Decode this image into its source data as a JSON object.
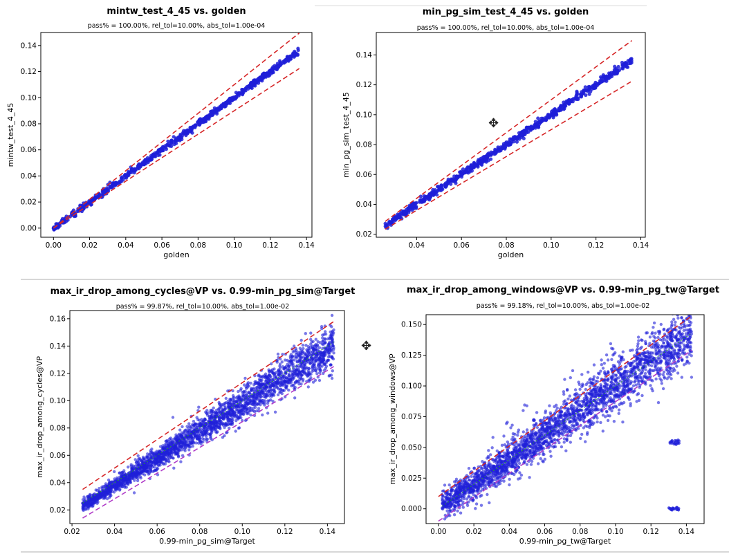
{
  "colors": {
    "points": "#1f1fd8",
    "tolerance": "#d62728",
    "tolerance_lower_alt": "#b03cc8",
    "diagonal": "#2ca02c"
  },
  "cursor_icons": [
    "move-cursor-icon",
    "move-cursor-icon"
  ],
  "chart_data": [
    {
      "type": "scatter",
      "title": "mintw_test_4_45 vs. golden",
      "subtitle": "pass% = 100.00%, rel_tol=10.00%, abs_tol=1.00e-04",
      "xlabel": "golden",
      "ylabel": "mintw_test_4_45",
      "xlim": [
        -0.007,
        0.143
      ],
      "ylim": [
        -0.007,
        0.15
      ],
      "xticks": [
        "0.00",
        "0.02",
        "0.04",
        "0.06",
        "0.08",
        "0.10",
        "0.12",
        "0.14"
      ],
      "yticks": [
        "0.00",
        "0.02",
        "0.04",
        "0.06",
        "0.08",
        "0.10",
        "0.12",
        "0.14"
      ],
      "points_range": [
        0.0,
        0.136
      ],
      "spread": 0.0012,
      "tolerance_lines": [
        {
          "x": [
            0.0,
            0.136
          ],
          "y": [
            0.0,
            0.1496
          ]
        },
        {
          "x": [
            0.0,
            0.136
          ],
          "y": [
            0.0,
            0.1224
          ]
        }
      ],
      "pass_pct": 100.0
    },
    {
      "type": "scatter",
      "title": "min_pg_sim_test_4_45 vs. golden",
      "subtitle": "pass% = 100.00%, rel_tol=10.00%, abs_tol=1.00e-04",
      "xlabel": "golden",
      "ylabel": "min_pg_sim_test_4_45",
      "xlim": [
        0.022,
        0.142
      ],
      "ylim": [
        0.018,
        0.155
      ],
      "xticks": [
        "0.04",
        "0.06",
        "0.08",
        "0.10",
        "0.12",
        "0.14"
      ],
      "yticks": [
        "0.02",
        "0.04",
        "0.06",
        "0.08",
        "0.10",
        "0.12",
        "0.14"
      ],
      "points_range": [
        0.026,
        0.136
      ],
      "spread": 0.0012,
      "tolerance_lines": [
        {
          "x": [
            0.026,
            0.136
          ],
          "y": [
            0.0286,
            0.1496
          ]
        },
        {
          "x": [
            0.026,
            0.136
          ],
          "y": [
            0.0234,
            0.1224
          ]
        }
      ],
      "pass_pct": 100.0
    },
    {
      "type": "scatter",
      "title": "max_ir_drop_among_cycles@VP vs. 0.99-min_pg_sim@Target",
      "subtitle": "pass% = 99.87%, rel_tol=10.00%, abs_tol=1.00e-02",
      "xlabel": "0.99-min_pg_sim@Target",
      "ylabel": "max_ir_drop_among_cycles@VP",
      "xlim": [
        0.019,
        0.148
      ],
      "ylim": [
        0.01,
        0.166
      ],
      "xticks": [
        "0.02",
        "0.04",
        "0.06",
        "0.08",
        "0.10",
        "0.12",
        "0.14"
      ],
      "yticks": [
        "0.02",
        "0.04",
        "0.06",
        "0.08",
        "0.10",
        "0.12",
        "0.14",
        "0.16"
      ],
      "points_range": [
        0.025,
        0.143
      ],
      "spread": 0.004,
      "tolerance_lines": [
        {
          "x": [
            0.025,
            0.143
          ],
          "y": [
            0.035,
            0.158
          ]
        },
        {
          "x": [
            0.025,
            0.143
          ],
          "y": [
            0.014,
            0.125
          ]
        }
      ],
      "pass_pct": 99.87
    },
    {
      "type": "scatter",
      "title": "max_ir_drop_among_windows@VP vs. 0.99-min_pg_tw@Target",
      "subtitle": "pass% = 99.18%, rel_tol=10.00%, abs_tol=1.00e-02",
      "xlabel": "0.99-min_pg_tw@Target",
      "ylabel": "max_ir_drop_among_windows@VP",
      "xlim": [
        -0.007,
        0.15
      ],
      "ylim": [
        -0.012,
        0.158
      ],
      "xticks": [
        "0.00",
        "0.02",
        "0.04",
        "0.06",
        "0.08",
        "0.10",
        "0.12",
        "0.14"
      ],
      "yticks": [
        "0.000",
        "0.025",
        "0.050",
        "0.075",
        "0.100",
        "0.125",
        "0.150"
      ],
      "points_range": [
        0.002,
        0.143
      ],
      "spread": 0.006,
      "tolerance_lines": [
        {
          "x": [
            0.0,
            0.143
          ],
          "y": [
            0.01,
            0.157
          ]
        },
        {
          "x": [
            0.0,
            0.143
          ],
          "y": [
            -0.01,
            0.129
          ]
        }
      ],
      "pass_pct": 99.18
    }
  ]
}
